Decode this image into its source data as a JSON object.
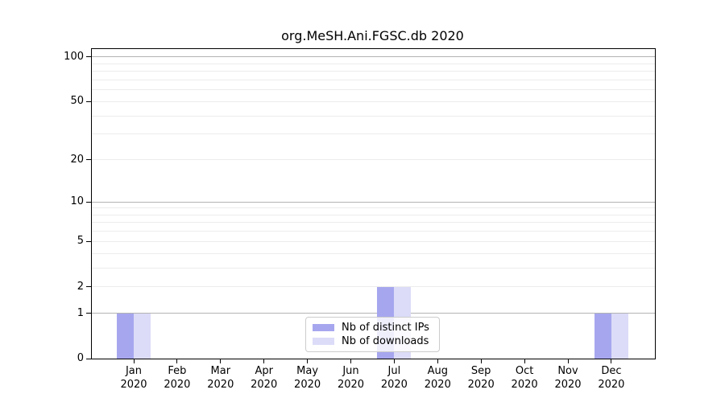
{
  "chart_data": {
    "type": "bar",
    "title": "org.MeSH.Ani.FGSC.db 2020",
    "categories": [
      "Jan",
      "Feb",
      "Mar",
      "Apr",
      "May",
      "Jun",
      "Jul",
      "Aug",
      "Sep",
      "Oct",
      "Nov",
      "Dec"
    ],
    "year_label": "2020",
    "series": [
      {
        "name": "Nb of distinct IPs",
        "color": "#a6a6ef",
        "values": [
          1,
          0,
          0,
          0,
          0,
          0,
          2,
          0,
          0,
          0,
          0,
          1
        ]
      },
      {
        "name": "Nb of downloads",
        "color": "#dcdcf8",
        "values": [
          1,
          0,
          0,
          0,
          0,
          0,
          2,
          0,
          0,
          0,
          0,
          1
        ]
      }
    ],
    "xlabel": "",
    "ylabel": "",
    "yscale": "log1p",
    "ylim": [
      0,
      113
    ],
    "yticks": [
      0,
      1,
      2,
      5,
      10,
      20,
      50,
      100
    ],
    "grid": {
      "major_values": [
        1,
        10,
        100
      ],
      "minor_values": [
        2,
        3,
        4,
        5,
        6,
        7,
        8,
        9,
        20,
        30,
        40,
        50,
        60,
        70,
        80,
        90
      ],
      "major_color": "#b3b3b3",
      "minor_color": "#ececec"
    },
    "legend_position": "lower center",
    "axis_color": "#000000",
    "background_color": "#ffffff"
  }
}
